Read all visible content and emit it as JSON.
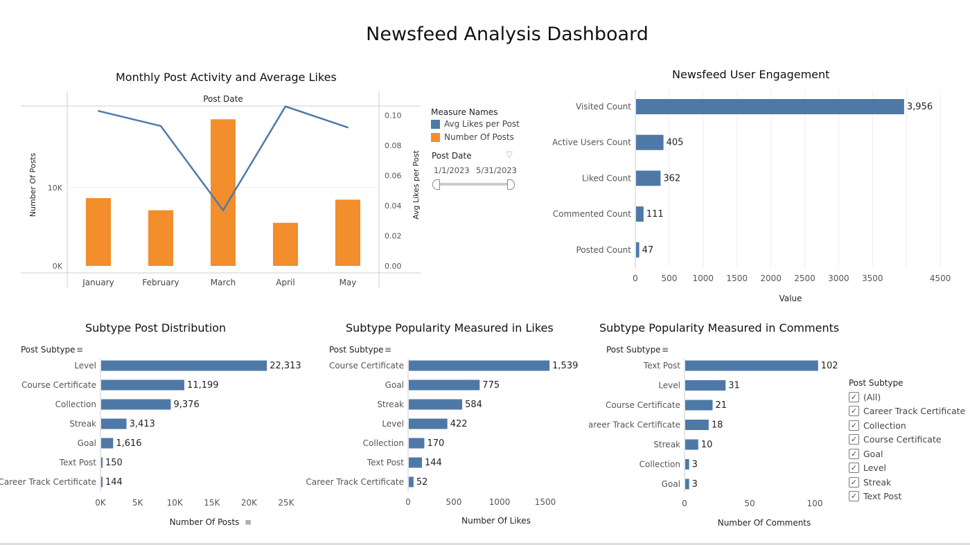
{
  "dashboard_title": "Newsfeed Analysis Dashboard",
  "colors": {
    "blue": "#4e79a7",
    "orange": "#f28e2b"
  },
  "legend": {
    "title": "Measure Names",
    "items": [
      {
        "label": "Avg Likes per Post",
        "color": "#4e79a7"
      },
      {
        "label": "Number Of Posts",
        "color": "#f28e2b"
      }
    ]
  },
  "date_filter": {
    "title": "Post Date",
    "start": "1/1/2023",
    "end": "5/31/2023",
    "icon": "filter-icon"
  },
  "subtype_filter": {
    "title": "Post Subtype",
    "items": [
      "(All)",
      "Career Track Certificate",
      "Collection",
      "Course Certificate",
      "Goal",
      "Level",
      "Streak",
      "Text Post"
    ],
    "checked": [
      true,
      true,
      true,
      true,
      true,
      true,
      true,
      true
    ]
  },
  "chart_data": [
    {
      "type": "bar+line",
      "title": "Monthly Post Activity and Average Likes",
      "column_header": "Post Date",
      "categories": [
        "January",
        "February",
        "March",
        "April",
        "May"
      ],
      "series": [
        {
          "name": "Number Of Posts",
          "type": "bar",
          "values": [
            8650,
            7100,
            18700,
            5500,
            8450
          ]
        },
        {
          "name": "Avg Likes per Post",
          "type": "line",
          "values": [
            0.103,
            0.093,
            0.037,
            0.106,
            0.092
          ]
        }
      ],
      "ylabel": "Number Of Posts",
      "y_ticks": [
        "0K",
        "10K"
      ],
      "ylim": [
        0,
        20400
      ],
      "y2label": "Avg Likes per Post",
      "y2_ticks": [
        "0.00",
        "0.02",
        "0.04",
        "0.06",
        "0.08",
        "0.10"
      ],
      "y2lim": [
        0,
        0.11
      ]
    },
    {
      "type": "bar",
      "orientation": "horizontal",
      "title": "Newsfeed User Engagement",
      "categories": [
        "Visited Count",
        "Active Users Count",
        "Liked Count",
        "Commented Count",
        "Posted Count"
      ],
      "values": [
        3956,
        405,
        362,
        111,
        47
      ],
      "labels": [
        "3,956",
        "405",
        "362",
        "111",
        "47"
      ],
      "xlabel": "Value",
      "x_ticks": [
        "0",
        "500",
        "1000",
        "1500",
        "2000",
        "2500",
        "3000",
        "3500",
        "4500"
      ],
      "xlim": [
        0,
        4600
      ],
      "grid": true
    },
    {
      "type": "bar",
      "orientation": "horizontal",
      "title": "Subtype Post Distribution",
      "header": "Post Subtype",
      "categories": [
        "Level",
        "Course Certificate",
        "Collection",
        "Streak",
        "Goal",
        "Text Post",
        "Career Track Certificate"
      ],
      "values": [
        22313,
        11199,
        9376,
        3413,
        1616,
        150,
        144
      ],
      "labels": [
        "22,313",
        "11,199",
        "9,376",
        "3,413",
        "1,616",
        "150",
        "144"
      ],
      "xlabel": "Number Of Posts",
      "x_ticks": [
        "0K",
        "5K",
        "10K",
        "15K",
        "20K",
        "25K"
      ],
      "xlim": [
        0,
        25000
      ]
    },
    {
      "type": "bar",
      "orientation": "horizontal",
      "title": "Subtype Popularity Measured in Likes",
      "header": "Post Subtype",
      "categories": [
        "Course Certificate",
        "Goal",
        "Streak",
        "Level",
        "Collection",
        "Text Post",
        "Career Track Certificate"
      ],
      "values": [
        1539,
        775,
        584,
        422,
        170,
        144,
        52
      ],
      "labels": [
        "1,539",
        "775",
        "584",
        "422",
        "170",
        "144",
        "52"
      ],
      "xlabel": "Number Of Likes",
      "x_ticks": [
        "0",
        "500",
        "1000",
        "1500"
      ],
      "xlim": [
        0,
        1500
      ]
    },
    {
      "type": "bar",
      "orientation": "horizontal",
      "title": "Subtype Popularity Measured in Comments",
      "header": "Post Subtype",
      "categories": [
        "Text Post",
        "Level",
        "Course Certificate",
        "Career Track Certificate",
        "Streak",
        "Collection",
        "Goal"
      ],
      "values": [
        102,
        31,
        21,
        18,
        10,
        3,
        3
      ],
      "labels": [
        "102",
        "31",
        "21",
        "18",
        "10",
        "3",
        "3"
      ],
      "xlabel": "Number Of Comments",
      "x_ticks": [
        "0",
        "50",
        "100"
      ],
      "xlim": [
        0,
        100
      ]
    }
  ]
}
